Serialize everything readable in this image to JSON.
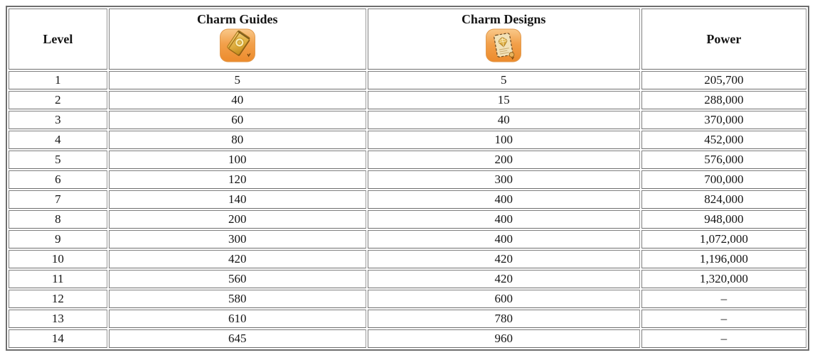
{
  "table": {
    "columns": [
      {
        "label": "Level"
      },
      {
        "label": "Charm Guides",
        "icon": "charm-guide-book-icon"
      },
      {
        "label": "Charm Designs",
        "icon": "charm-design-scroll-icon"
      },
      {
        "label": "Power"
      }
    ],
    "rows": [
      {
        "level": "1",
        "charm_guides": "5",
        "charm_designs": "5",
        "power": "205,700"
      },
      {
        "level": "2",
        "charm_guides": "40",
        "charm_designs": "15",
        "power": "288,000"
      },
      {
        "level": "3",
        "charm_guides": "60",
        "charm_designs": "40",
        "power": "370,000"
      },
      {
        "level": "4",
        "charm_guides": "80",
        "charm_designs": "100",
        "power": "452,000"
      },
      {
        "level": "5",
        "charm_guides": "100",
        "charm_designs": "200",
        "power": "576,000"
      },
      {
        "level": "6",
        "charm_guides": "120",
        "charm_designs": "300",
        "power": "700,000"
      },
      {
        "level": "7",
        "charm_guides": "140",
        "charm_designs": "400",
        "power": "824,000"
      },
      {
        "level": "8",
        "charm_guides": "200",
        "charm_designs": "400",
        "power": "948,000"
      },
      {
        "level": "9",
        "charm_guides": "300",
        "charm_designs": "400",
        "power": "1,072,000"
      },
      {
        "level": "10",
        "charm_guides": "420",
        "charm_designs": "420",
        "power": "1,196,000"
      },
      {
        "level": "11",
        "charm_guides": "560",
        "charm_designs": "420",
        "power": "1,320,000"
      },
      {
        "level": "12",
        "charm_guides": "580",
        "charm_designs": "600",
        "power": "–"
      },
      {
        "level": "13",
        "charm_guides": "610",
        "charm_designs": "780",
        "power": "–"
      },
      {
        "level": "14",
        "charm_guides": "645",
        "charm_designs": "960",
        "power": "–"
      }
    ]
  },
  "colors": {
    "outer_border": "#6e6e6e",
    "cell_border": "#8c8c8c",
    "icon_orange": "#ef9436",
    "icon_gold": "#e0af4a",
    "parchment": "#f2e2b8",
    "text": "#141414"
  }
}
